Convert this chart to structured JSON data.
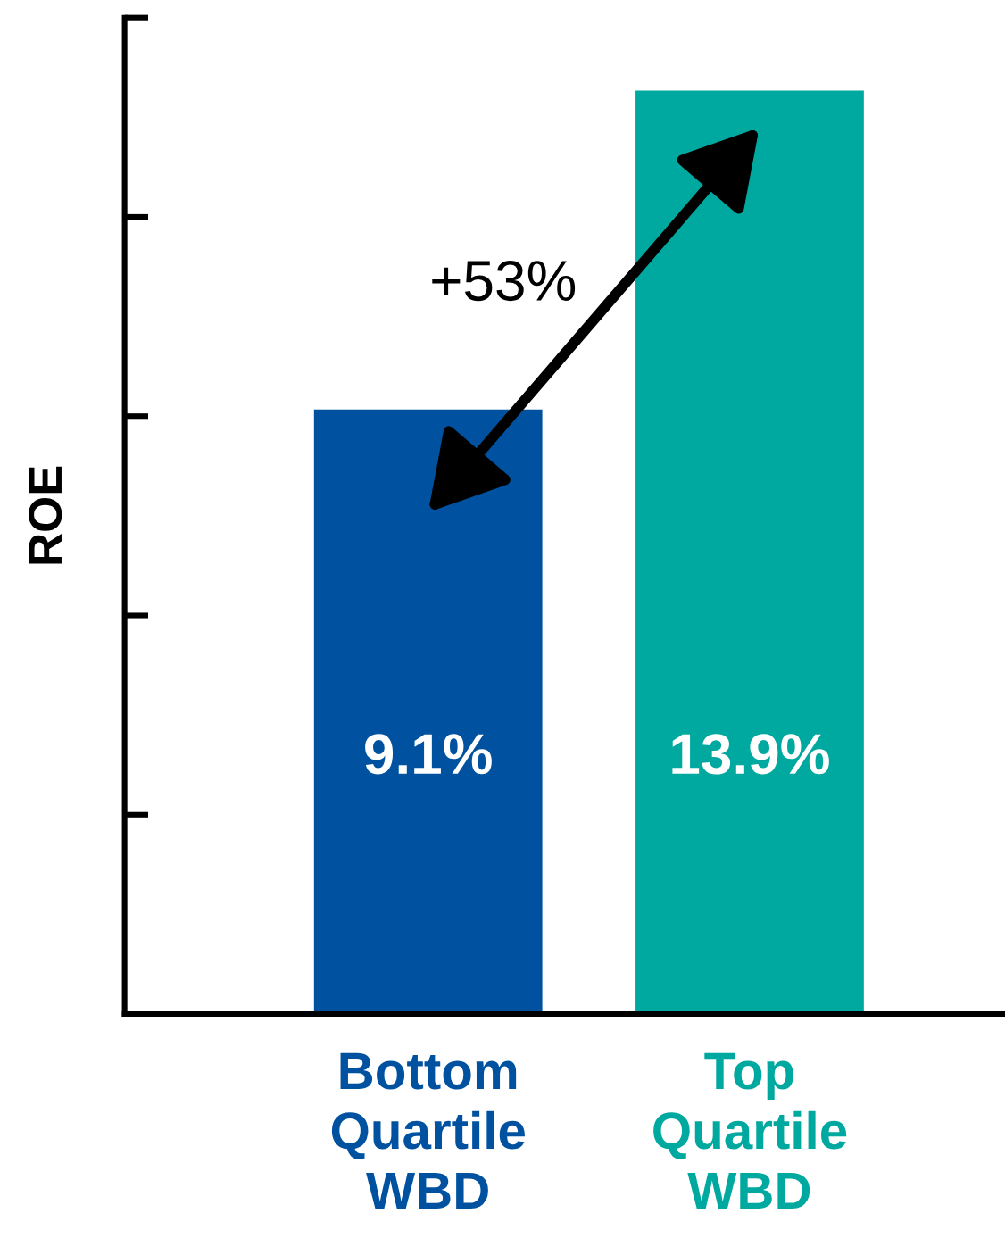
{
  "chart_data": {
    "type": "bar",
    "ylabel": "ROE",
    "categories": [
      "Bottom\nQuartile\nWBD",
      "Top\nQuartile\nWBD"
    ],
    "values": [
      9.1,
      13.9
    ],
    "colors": [
      "#0052a1",
      "#00a99f"
    ],
    "value_labels": [
      "9.1%",
      "13.9%"
    ],
    "ylim": [
      0,
      15
    ],
    "yticks": [
      {
        "value": 3,
        "label": null
      },
      {
        "value": 6,
        "label": null
      },
      {
        "value": 9,
        "label": null
      },
      {
        "value": 12,
        "label": null
      },
      {
        "value": 15,
        "label": null
      }
    ],
    "annotations": [
      "+53%"
    ]
  }
}
